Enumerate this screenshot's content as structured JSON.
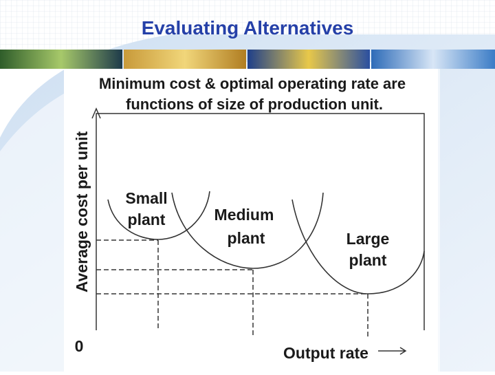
{
  "header": {
    "title": "Evaluating Alternatives"
  },
  "diagram": {
    "caption": [
      "Minimum cost & optimal operating rate are",
      "functions of size of production unit."
    ],
    "y_axis_label": "Average cost per unit",
    "x_axis_label": "Output rate",
    "origin_label": "0",
    "curves": [
      {
        "label": [
          "Small",
          "plant"
        ]
      },
      {
        "label": [
          "Medium",
          "plant"
        ]
      },
      {
        "label": [
          "Large",
          "plant"
        ]
      }
    ]
  }
}
